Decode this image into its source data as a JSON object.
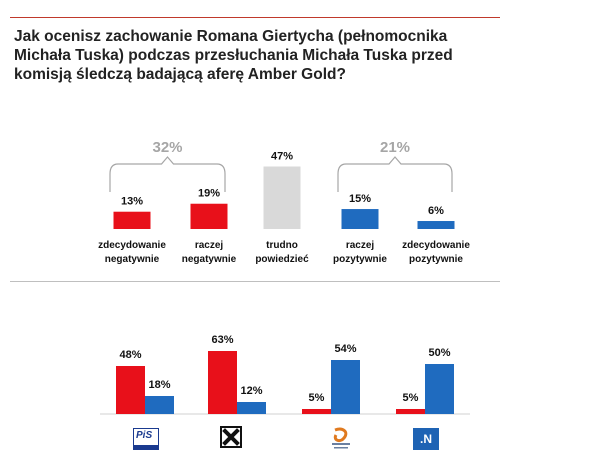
{
  "title": "Jak ocenisz zachowanie Romana Giertycha (pełnomocnika Michała Tuska) podczas przesłuchania Michała Tuska przed komisją śledczą badającą aferę Amber Gold?",
  "colors": {
    "negative": "#e8101a",
    "positive": "#1f6bbf",
    "neutral": "#d9d9d9",
    "group_label": "#a6a6a6"
  },
  "chart_data": [
    {
      "type": "bar",
      "categories": [
        "zdecydowanie negatywnie",
        "raczej negatywnie",
        "trudno powiedzieć",
        "raczej pozytywnie",
        "zdecydowanie pozytywnie"
      ],
      "category_lines": [
        [
          "zdecydowanie",
          "negatywnie"
        ],
        [
          "raczej",
          "negatywnie"
        ],
        [
          "trudno",
          "powiedzieć"
        ],
        [
          "raczej",
          "pozytywnie"
        ],
        [
          "zdecydowanie",
          "pozytywnie"
        ]
      ],
      "values": [
        13,
        19,
        47,
        15,
        6
      ],
      "value_labels": [
        "13%",
        "19%",
        "47%",
        "15%",
        "6%"
      ],
      "bar_colors": [
        "negative",
        "negative",
        "neutral",
        "positive",
        "positive"
      ],
      "groups": [
        {
          "label": "32%",
          "value": 32,
          "spans": [
            0,
            1
          ]
        },
        {
          "label": "21%",
          "value": 21,
          "spans": [
            3,
            4
          ]
        }
      ]
    },
    {
      "type": "bar",
      "categories": [
        "PiS",
        "Kukiz'15",
        "Platforma Obywatelska",
        ".N"
      ],
      "series": [
        {
          "color": "negative",
          "values": [
            48,
            63,
            5,
            5
          ],
          "value_labels": [
            "48%",
            "63%",
            "5%",
            "5%"
          ]
        },
        {
          "color": "positive",
          "values": [
            18,
            12,
            54,
            50
          ],
          "value_labels": [
            "18%",
            "12%",
            "54%",
            "50%"
          ]
        }
      ],
      "logos": [
        {
          "icon": "pis-logo-icon",
          "text": "PiS"
        },
        {
          "icon": "kukiz-logo-icon",
          "text": ""
        },
        {
          "icon": "platforma-obywatelska-logo-icon",
          "text": ""
        },
        {
          "icon": "nowoczesna-logo-icon",
          "text": ".N"
        }
      ]
    }
  ]
}
